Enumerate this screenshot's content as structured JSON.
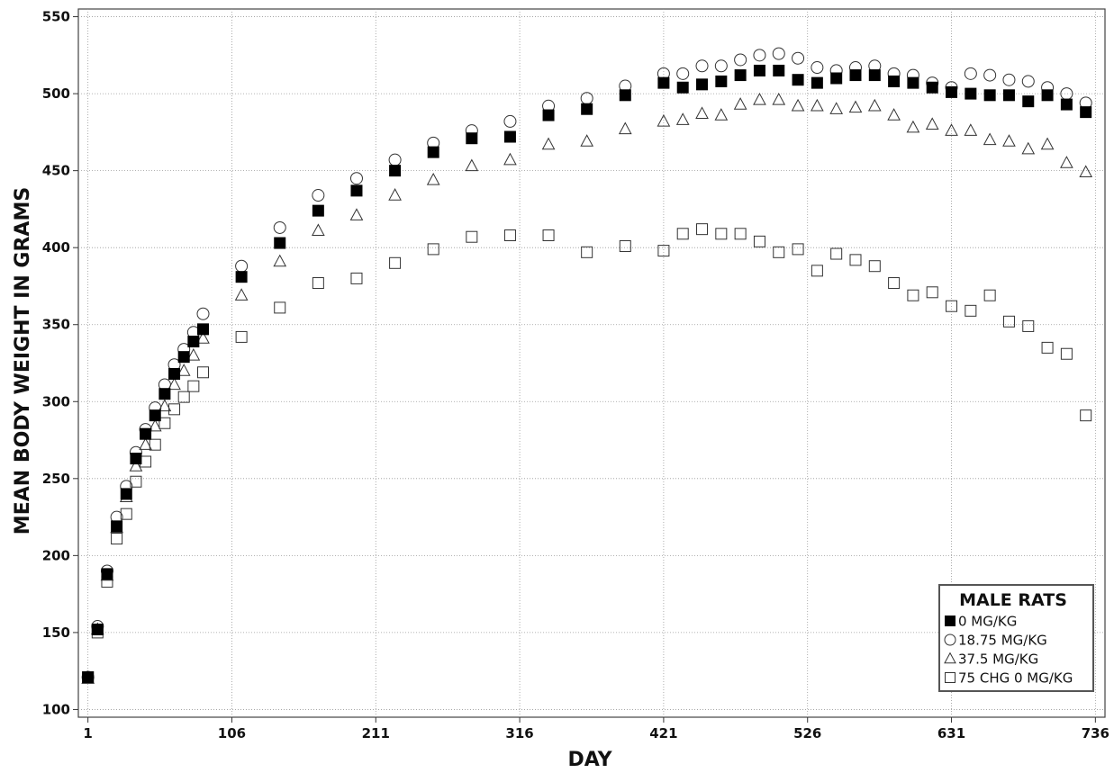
{
  "chart_data": {
    "type": "scatter",
    "title": "",
    "xlabel": "DAY",
    "ylabel": "MEAN BODY WEIGHT IN GRAMS",
    "xlim": [
      -6,
      743
    ],
    "ylim": [
      95,
      555
    ],
    "x_ticks": [
      1,
      106,
      211,
      316,
      421,
      526,
      631,
      736
    ],
    "y_ticks": [
      100,
      150,
      200,
      250,
      300,
      350,
      400,
      450,
      500,
      550
    ],
    "grid": true,
    "legend": {
      "title": "MALE RATS",
      "placement": "bottom-right"
    },
    "series": [
      {
        "name": "0      MG/KG",
        "marker": "filled-square",
        "color": "#000000",
        "x": [
          1,
          8,
          15,
          22,
          29,
          36,
          43,
          50,
          57,
          64,
          71,
          78,
          85,
          113,
          141,
          169,
          197,
          225,
          253,
          281,
          309,
          337,
          365,
          393,
          421,
          435,
          449,
          463,
          477,
          491,
          505,
          519,
          533,
          547,
          561,
          575,
          589,
          603,
          617,
          631,
          645,
          659,
          673,
          687,
          701,
          715,
          729
        ],
        "y": [
          121,
          152,
          188,
          219,
          240,
          263,
          279,
          291,
          305,
          318,
          329,
          339,
          347,
          381,
          403,
          424,
          437,
          450,
          462,
          471,
          472,
          486,
          490,
          499,
          507,
          504,
          506,
          508,
          512,
          515,
          515,
          509,
          507,
          510,
          512,
          512,
          508,
          507,
          504,
          501,
          500,
          499,
          499,
          495,
          499,
          493,
          488
        ]
      },
      {
        "name": "18.75   MG/KG",
        "marker": "open-circle",
        "color": "#000000",
        "x": [
          1,
          8,
          15,
          22,
          29,
          36,
          43,
          50,
          57,
          64,
          71,
          78,
          85,
          113,
          141,
          169,
          197,
          225,
          253,
          281,
          309,
          337,
          365,
          393,
          421,
          435,
          449,
          463,
          477,
          491,
          505,
          519,
          533,
          547,
          561,
          575,
          589,
          603,
          617,
          631,
          645,
          659,
          673,
          687,
          701,
          715,
          729
        ],
        "y": [
          121,
          154,
          190,
          225,
          245,
          267,
          282,
          296,
          311,
          324,
          334,
          345,
          357,
          388,
          413,
          434,
          445,
          457,
          468,
          476,
          482,
          492,
          497,
          505,
          513,
          513,
          518,
          518,
          522,
          525,
          526,
          523,
          517,
          515,
          517,
          518,
          513,
          512,
          507,
          504,
          513,
          512,
          509,
          508,
          504,
          500,
          494
        ]
      },
      {
        "name": "37.5    MG/KG",
        "marker": "open-triangle",
        "color": "#000000",
        "x": [
          1,
          8,
          15,
          22,
          29,
          36,
          43,
          50,
          57,
          64,
          71,
          78,
          85,
          113,
          141,
          169,
          197,
          225,
          253,
          281,
          309,
          337,
          365,
          393,
          421,
          435,
          449,
          463,
          477,
          491,
          505,
          519,
          533,
          547,
          561,
          575,
          589,
          603,
          617,
          631,
          645,
          659,
          673,
          687,
          701,
          715,
          729
        ],
        "y": [
          120,
          152,
          187,
          218,
          238,
          258,
          272,
          284,
          297,
          311,
          320,
          330,
          341,
          369,
          391,
          411,
          421,
          434,
          444,
          453,
          457,
          467,
          469,
          477,
          482,
          483,
          487,
          486,
          493,
          496,
          496,
          492,
          492,
          490,
          491,
          492,
          486,
          478,
          480,
          476,
          476,
          470,
          469,
          464,
          467,
          455,
          449
        ]
      },
      {
        "name": "75 CHG  0 MG/KG",
        "marker": "open-square",
        "color": "#000000",
        "x": [
          1,
          8,
          15,
          22,
          29,
          36,
          43,
          50,
          57,
          64,
          71,
          78,
          85,
          113,
          141,
          169,
          197,
          225,
          253,
          281,
          309,
          337,
          365,
          393,
          421,
          435,
          449,
          463,
          477,
          491,
          505,
          519,
          533,
          547,
          561,
          575,
          589,
          603,
          617,
          631,
          645,
          659,
          673,
          687,
          701,
          715,
          729
        ],
        "y": [
          121,
          150,
          183,
          211,
          227,
          248,
          261,
          272,
          286,
          295,
          303,
          310,
          319,
          342,
          361,
          377,
          380,
          390,
          399,
          407,
          408,
          408,
          397,
          401,
          398,
          409,
          412,
          409,
          409,
          404,
          397,
          399,
          385,
          396,
          392,
          388,
          377,
          369,
          371,
          362,
          359,
          369,
          352,
          349,
          335,
          331,
          291
        ]
      }
    ]
  }
}
